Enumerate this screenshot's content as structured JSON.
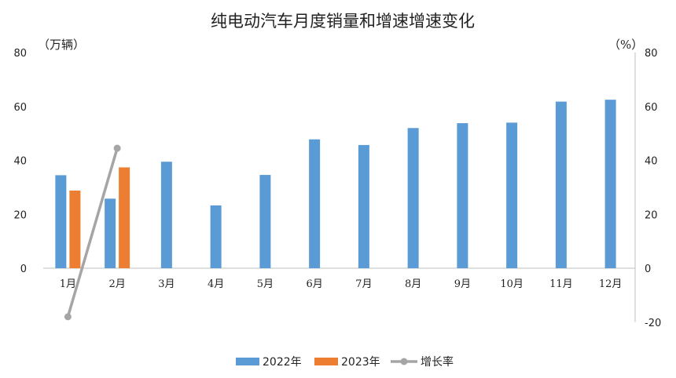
{
  "chart_data": {
    "type": "bar",
    "title": "纯电动汽车月度销量和增速增速变化",
    "left_unit": "（万辆）",
    "right_unit": "（%）",
    "categories": [
      "1月",
      "2月",
      "3月",
      "4月",
      "5月",
      "6月",
      "7月",
      "8月",
      "9月",
      "10月",
      "11月",
      "12月"
    ],
    "series": [
      {
        "name": "2022年",
        "kind": "bar",
        "axis": "left",
        "color": "#5b9bd5",
        "values": [
          34.5,
          25.8,
          39.5,
          23.3,
          34.6,
          47.8,
          45.7,
          52.0,
          53.8,
          54.0,
          61.8,
          62.5
        ]
      },
      {
        "name": "2023年",
        "kind": "bar",
        "axis": "left",
        "color": "#ed7d31",
        "values": [
          28.8,
          37.4,
          null,
          null,
          null,
          null,
          null,
          null,
          null,
          null,
          null,
          null
        ]
      },
      {
        "name": "增长率",
        "kind": "line",
        "axis": "right",
        "color": "#a5a5a5",
        "values": [
          -18.0,
          44.5,
          null,
          null,
          null,
          null,
          null,
          null,
          null,
          null,
          null,
          null
        ]
      }
    ],
    "y_left": {
      "min": 0,
      "max": 80,
      "ticks": [
        0,
        20,
        40,
        60,
        80
      ]
    },
    "y_right": {
      "min": -20,
      "max": 80,
      "ticks": [
        -20,
        0,
        20,
        40,
        60,
        80
      ],
      "negative_tick_color": "#ff0000"
    },
    "grid": false,
    "legend": "bottom"
  }
}
